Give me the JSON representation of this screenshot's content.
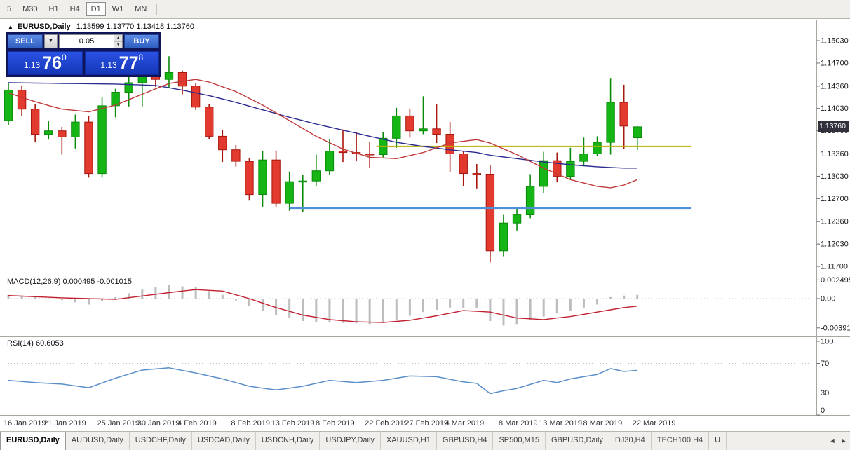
{
  "toolbar": {
    "timeframes": [
      "5",
      "M30",
      "H1",
      "H4",
      "D1",
      "W1",
      "MN"
    ],
    "selected": "D1"
  },
  "chart": {
    "collapse_icon": "▲",
    "symbol": "EURUSD,Daily",
    "ohlc": "1.13599 1.13770 1.13418 1.13760",
    "current_price": "1.13760",
    "price_axis": [
      "1.15030",
      "1.14700",
      "1.14360",
      "1.14030",
      "1.13700",
      "1.13360",
      "1.13030",
      "1.12700",
      "1.12360",
      "1.12030",
      "1.11700"
    ]
  },
  "trade": {
    "sell_label": "SELL",
    "buy_label": "BUY",
    "volume": "0.05",
    "combo_icon": "▼",
    "spin_up": "▲",
    "spin_down": "▼",
    "sell_prefix": "1.13",
    "sell_big": "76",
    "sell_sup": "0",
    "buy_prefix": "1.13",
    "buy_big": "77",
    "buy_sup": "8"
  },
  "panels": {
    "macd_label": "MACD(12,26,9) 0.000495 -0.001015",
    "rsi_label": "RSI(14) 60.6053"
  },
  "tabs": {
    "active_index": 0,
    "scroll_left": "◄",
    "scroll_right": "►",
    "items": [
      "EURUSD,Daily",
      "AUDUSD,Daily",
      "USDCHF,Daily",
      "USDCAD,Daily",
      "USDCNH,Daily",
      "USDJPY,Daily",
      "XAUUSD,H1",
      "GBPUSD,H4",
      "SP500,M15",
      "GBPUSD,Daily",
      "DJ30,H4",
      "TECH100,H4",
      "U"
    ]
  },
  "chart_data": {
    "type": "candlestick",
    "title": "EURUSD,Daily",
    "ylim": [
      1.116,
      1.1532
    ],
    "candles": [
      [
        1.1385,
        1.144,
        1.1378,
        1.143
      ],
      [
        1.143,
        1.1436,
        1.1392,
        1.1402
      ],
      [
        1.1402,
        1.141,
        1.1353,
        1.1365
      ],
      [
        1.1365,
        1.1384,
        1.1357,
        1.137
      ],
      [
        1.137,
        1.1376,
        1.1335,
        1.1361
      ],
      [
        1.1361,
        1.1394,
        1.1344,
        1.1383
      ],
      [
        1.1383,
        1.1392,
        1.1301,
        1.1307
      ],
      [
        1.1307,
        1.142,
        1.1301,
        1.1407
      ],
      [
        1.1407,
        1.1432,
        1.139,
        1.1427
      ],
      [
        1.1427,
        1.1452,
        1.1406,
        1.1441
      ],
      [
        1.1441,
        1.1475,
        1.1406,
        1.1468
      ],
      [
        1.1468,
        1.1483,
        1.1435,
        1.1446
      ],
      [
        1.1446,
        1.148,
        1.1434,
        1.1456
      ],
      [
        1.1456,
        1.1459,
        1.1424,
        1.1436
      ],
      [
        1.1436,
        1.144,
        1.1401,
        1.1405
      ],
      [
        1.1405,
        1.141,
        1.1358,
        1.1362
      ],
      [
        1.1362,
        1.1371,
        1.1324,
        1.1342
      ],
      [
        1.1342,
        1.1349,
        1.1317,
        1.1325
      ],
      [
        1.1325,
        1.133,
        1.1267,
        1.1276
      ],
      [
        1.1276,
        1.134,
        1.1258,
        1.1327
      ],
      [
        1.1327,
        1.1341,
        1.1257,
        1.1263
      ],
      [
        1.1263,
        1.131,
        1.1252,
        1.1295
      ],
      [
        1.1295,
        1.1305,
        1.125,
        1.1296
      ],
      [
        1.1296,
        1.1335,
        1.1289,
        1.1311
      ],
      [
        1.1311,
        1.1358,
        1.1305,
        1.134
      ],
      [
        1.134,
        1.1372,
        1.1324,
        1.1338
      ],
      [
        1.1338,
        1.1368,
        1.1325,
        1.1336
      ],
      [
        1.1336,
        1.1354,
        1.1315,
        1.1335
      ],
      [
        1.1335,
        1.1368,
        1.1331,
        1.1359
      ],
      [
        1.1359,
        1.1404,
        1.1345,
        1.1392
      ],
      [
        1.1392,
        1.1403,
        1.136,
        1.137
      ],
      [
        1.137,
        1.1421,
        1.1365,
        1.1373
      ],
      [
        1.1373,
        1.1409,
        1.1352,
        1.1365
      ],
      [
        1.1365,
        1.1383,
        1.1309,
        1.1336
      ],
      [
        1.1336,
        1.134,
        1.1289,
        1.1307
      ],
      [
        1.1307,
        1.1321,
        1.1285,
        1.1306
      ],
      [
        1.1306,
        1.132,
        1.1176,
        1.1193
      ],
      [
        1.1193,
        1.1246,
        1.1185,
        1.1234
      ],
      [
        1.1234,
        1.1258,
        1.1223,
        1.1246
      ],
      [
        1.1246,
        1.1306,
        1.1241,
        1.1288
      ],
      [
        1.1288,
        1.1339,
        1.1278,
        1.1326
      ],
      [
        1.1326,
        1.1338,
        1.1294,
        1.1303
      ],
      [
        1.1303,
        1.1345,
        1.1299,
        1.1325
      ],
      [
        1.1325,
        1.136,
        1.1319,
        1.1336
      ],
      [
        1.1336,
        1.1362,
        1.1333,
        1.1353
      ],
      [
        1.1353,
        1.1448,
        1.1335,
        1.1412
      ],
      [
        1.1412,
        1.1438,
        1.1343,
        1.1377
      ],
      [
        1.13599,
        1.1377,
        1.13418,
        1.1376
      ]
    ],
    "x_labels": [
      {
        "label": "16 Jan 2019",
        "idx": 0
      },
      {
        "label": "21 Jan 2019",
        "idx": 3
      },
      {
        "label": "25 Jan 2019",
        "idx": 7
      },
      {
        "label": "30 Jan 2019",
        "idx": 10
      },
      {
        "label": "4 Feb 2019",
        "idx": 13
      },
      {
        "label": "8 Feb 2019",
        "idx": 17
      },
      {
        "label": "13 Feb 2019",
        "idx": 20
      },
      {
        "label": "18 Feb 2019",
        "idx": 23
      },
      {
        "label": "22 Feb 2019",
        "idx": 27
      },
      {
        "label": "27 Feb 2019",
        "idx": 30
      },
      {
        "label": "4 Mar 2019",
        "idx": 33
      },
      {
        "label": "8 Mar 2019",
        "idx": 37
      },
      {
        "label": "13 Mar 2019",
        "idx": 40
      },
      {
        "label": "18 Mar 2019",
        "idx": 43
      },
      {
        "label": "22 Mar 2019",
        "idx": 47
      }
    ],
    "ma_fast_red": [
      [
        0,
        1.1426
      ],
      [
        2,
        1.1413
      ],
      [
        4,
        1.1402
      ],
      [
        6,
        1.1398
      ],
      [
        8,
        1.1408
      ],
      [
        10,
        1.1424
      ],
      [
        12,
        1.144
      ],
      [
        14,
        1.1446
      ],
      [
        15,
        1.1442
      ],
      [
        17,
        1.1428
      ],
      [
        19,
        1.1408
      ],
      [
        21,
        1.1385
      ],
      [
        23,
        1.1362
      ],
      [
        25,
        1.1343
      ],
      [
        27,
        1.1331
      ],
      [
        29,
        1.1329
      ],
      [
        31,
        1.1338
      ],
      [
        33,
        1.1352
      ],
      [
        35,
        1.1357
      ],
      [
        36,
        1.1352
      ],
      [
        38,
        1.1335
      ],
      [
        40,
        1.1315
      ],
      [
        42,
        1.1298
      ],
      [
        44,
        1.1288
      ],
      [
        45,
        1.1286
      ],
      [
        46,
        1.129
      ],
      [
        47,
        1.1298
      ]
    ],
    "ma_slow_blue": [
      [
        0,
        1.1441
      ],
      [
        4,
        1.144
      ],
      [
        8,
        1.1439
      ],
      [
        11,
        1.1437
      ],
      [
        13,
        1.143
      ],
      [
        15,
        1.1422
      ],
      [
        17,
        1.1412
      ],
      [
        19,
        1.1401
      ],
      [
        21,
        1.139
      ],
      [
        23,
        1.138
      ],
      [
        25,
        1.1371
      ],
      [
        27,
        1.1362
      ],
      [
        29,
        1.1353
      ],
      [
        31,
        1.1347
      ],
      [
        33,
        1.1342
      ],
      [
        35,
        1.1338
      ],
      [
        36,
        1.1334
      ],
      [
        38,
        1.1329
      ],
      [
        40,
        1.1324
      ],
      [
        42,
        1.132
      ],
      [
        44,
        1.1317
      ],
      [
        46,
        1.1315
      ],
      [
        47,
        1.1315
      ]
    ],
    "hlines": [
      {
        "price": 1.1347,
        "color": "#b8ae00",
        "width": 2,
        "from_idx": 27.5,
        "to_idx": 51
      },
      {
        "price": 1.1256,
        "color": "#4f90d8",
        "width": 2.4,
        "from_idx": 21,
        "to_idx": 51
      }
    ],
    "macd": {
      "axis_ticks": [
        "0.002495",
        "0.00",
        "-0.003919"
      ],
      "hist_points": [
        [
          0,
          0.0005
        ],
        [
          2,
          0.0003
        ],
        [
          4,
          -0.0002
        ],
        [
          6,
          -0.0008
        ],
        [
          8,
          0.0002
        ],
        [
          10,
          0.0012
        ],
        [
          12,
          0.0018
        ],
        [
          14,
          0.0015
        ],
        [
          16,
          0.0005
        ],
        [
          18,
          -0.001
        ],
        [
          20,
          -0.0022
        ],
        [
          22,
          -0.003
        ],
        [
          24,
          -0.0032
        ],
        [
          26,
          -0.0033
        ],
        [
          27,
          -0.0034
        ],
        [
          29,
          -0.0028
        ],
        [
          31,
          -0.0018
        ],
        [
          33,
          -0.0012
        ],
        [
          35,
          -0.0013
        ],
        [
          36,
          -0.003
        ],
        [
          37,
          -0.0036
        ],
        [
          38,
          -0.0034
        ],
        [
          40,
          -0.0024
        ],
        [
          42,
          -0.0016
        ],
        [
          44,
          -0.0008
        ],
        [
          45,
          0.0002
        ],
        [
          46,
          0.0004
        ],
        [
          47,
          0.000495
        ]
      ],
      "signal_points": [
        [
          0,
          0.0004
        ],
        [
          4,
          0.0001
        ],
        [
          8,
          -0.0001
        ],
        [
          12,
          0.0008
        ],
        [
          14,
          0.0012
        ],
        [
          16,
          0.001
        ],
        [
          18,
          0.0
        ],
        [
          20,
          -0.0012
        ],
        [
          22,
          -0.0022
        ],
        [
          24,
          -0.0028
        ],
        [
          26,
          -0.0031
        ],
        [
          28,
          -0.0032
        ],
        [
          30,
          -0.0029
        ],
        [
          32,
          -0.0023
        ],
        [
          34,
          -0.0016
        ],
        [
          36,
          -0.0018
        ],
        [
          38,
          -0.0026
        ],
        [
          40,
          -0.0028
        ],
        [
          42,
          -0.0024
        ],
        [
          44,
          -0.0018
        ],
        [
          46,
          -0.0012
        ],
        [
          47,
          -0.001015
        ]
      ]
    },
    "rsi": {
      "axis_ticks": [
        "100",
        "70",
        "30",
        "0"
      ],
      "levels": [
        70,
        30
      ],
      "points": [
        [
          0,
          47
        ],
        [
          2,
          44
        ],
        [
          4,
          42
        ],
        [
          6,
          37
        ],
        [
          8,
          50
        ],
        [
          10,
          61
        ],
        [
          12,
          64
        ],
        [
          14,
          57
        ],
        [
          16,
          49
        ],
        [
          18,
          39
        ],
        [
          20,
          34
        ],
        [
          22,
          39
        ],
        [
          24,
          47
        ],
        [
          26,
          44
        ],
        [
          28,
          47
        ],
        [
          30,
          53
        ],
        [
          32,
          52
        ],
        [
          34,
          45
        ],
        [
          35,
          43
        ],
        [
          36,
          29
        ],
        [
          37,
          33
        ],
        [
          38,
          36
        ],
        [
          40,
          47
        ],
        [
          41,
          44
        ],
        [
          42,
          49
        ],
        [
          44,
          55
        ],
        [
          45,
          63
        ],
        [
          46,
          59
        ],
        [
          47,
          60.6
        ]
      ]
    }
  }
}
